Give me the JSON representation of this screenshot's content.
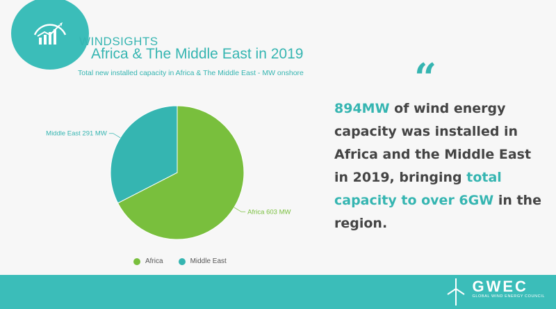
{
  "brand": "WINDSIGHTS",
  "title": "Africa & The Middle East in 2019",
  "subtitle": "Total new installed capacity in Africa & The Middle East - MW onshore",
  "quote_mark": "“",
  "body": {
    "p1_highlight": "894MW",
    "p1_text": " of wind energy capacity was installed in Africa and the Middle East in 2019, bringing ",
    "p2_highlight": "total capacity to over 6GW",
    "p2_text": " in the region."
  },
  "footer": {
    "logo_name": "GWEC",
    "logo_tagline": "GLOBAL WIND ENERGY COUNCIL"
  },
  "colors": {
    "africa": "#79bf3d",
    "middle_east": "#35b5b1",
    "accent": "#3bbdb9"
  },
  "chart_data": {
    "type": "pie",
    "categories": [
      "Africa",
      "Middle East"
    ],
    "values": [
      603,
      291
    ],
    "unit": "MW",
    "slice_labels": [
      "Africa 603 MW",
      "Middle East 291 MW"
    ],
    "legend": [
      "Africa",
      "Middle East"
    ],
    "legend_position": "bottom"
  }
}
